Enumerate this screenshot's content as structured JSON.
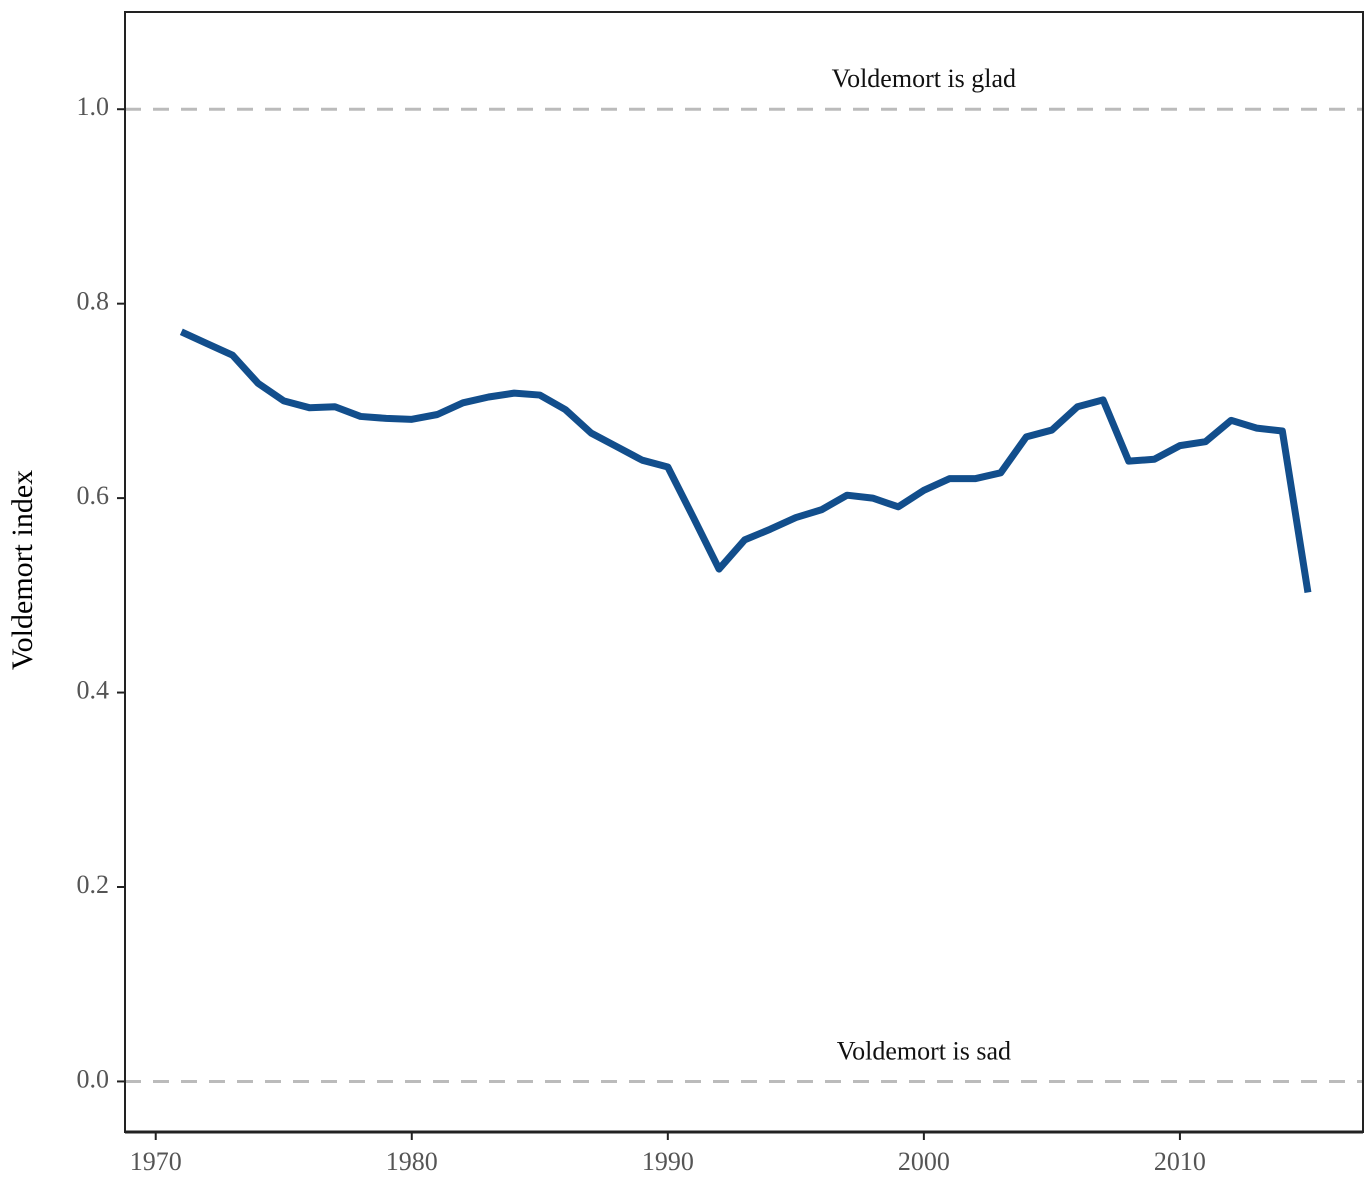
{
  "chart_data": {
    "type": "line",
    "y_label": "Voldemort index",
    "x": [
      1971,
      1972,
      1973,
      1974,
      1975,
      1976,
      1977,
      1978,
      1979,
      1980,
      1981,
      1982,
      1983,
      1984,
      1985,
      1986,
      1987,
      1988,
      1989,
      1990,
      1991,
      1992,
      1993,
      1994,
      1995,
      1996,
      1997,
      1998,
      1999,
      2000,
      2001,
      2002,
      2003,
      2004,
      2005,
      2006,
      2007,
      2008,
      2009,
      2010,
      2011,
      2012,
      2013,
      2014,
      2015
    ],
    "series": [
      {
        "color": "#124e8c",
        "values": [
          0.771,
          0.759,
          0.747,
          0.718,
          0.7,
          0.693,
          0.694,
          0.684,
          0.682,
          0.681,
          0.686,
          0.698,
          0.704,
          0.708,
          0.706,
          0.691,
          0.667,
          0.653,
          0.639,
          0.632,
          0.58,
          0.527,
          0.557,
          0.568,
          0.58,
          0.588,
          0.603,
          0.6,
          0.591,
          0.608,
          0.62,
          0.62,
          0.626,
          0.663,
          0.67,
          0.694,
          0.701,
          0.638,
          0.64,
          0.654,
          0.658,
          0.68,
          0.672,
          0.669,
          0.503
        ]
      }
    ],
    "annotations": [
      {
        "text": "Voldemort is glad",
        "x": 2000,
        "y": 1.0
      },
      {
        "text": "Voldemort is sad",
        "x": 2000,
        "y": 0.0
      }
    ],
    "xlim": [
      1968.8,
      2017.15
    ],
    "ylim": [
      -0.052,
      1.1
    ],
    "xticks": [
      1970,
      1980,
      1990,
      2000,
      2010
    ],
    "yticks": [
      {
        "value": 0,
        "label": "0.0"
      },
      0.2,
      0.4,
      0.6,
      0.8,
      {
        "value": 1,
        "label": "1.0"
      }
    ]
  }
}
